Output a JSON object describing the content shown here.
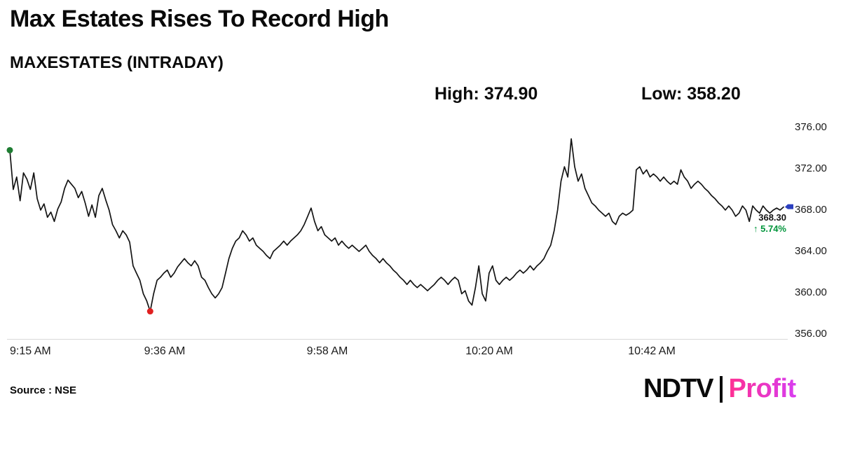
{
  "header": {
    "title": "Max Estates Rises To Record High",
    "subtitle": "MAXESTATES (INTRADAY)",
    "high_label": "High: 374.90",
    "low_label": "Low: 358.20"
  },
  "chart_data": {
    "type": "line",
    "symbol": "MAXESTATES",
    "session": "INTRADAY",
    "title": "Max Estates Rises To Record High",
    "high": 374.9,
    "low": 358.2,
    "last_price": 368.3,
    "change_percent": 5.74,
    "ylim": [
      356,
      376
    ],
    "grid": false,
    "line_color": "#141414",
    "start_marker_color": "#1e7d32",
    "low_marker_color": "#e02020",
    "last_marker_color": "#2b3fbf",
    "x_tick_labels": [
      "9:15 AM",
      "9:36 AM",
      "9:58 AM",
      "10:20 AM",
      "10:42 AM"
    ],
    "y_tick_labels": [
      "376.00",
      "372.00",
      "368.00",
      "364.00",
      "360.00",
      "356.00"
    ],
    "prices": [
      373.8,
      370.0,
      371.2,
      368.9,
      371.6,
      371.0,
      370.0,
      371.6,
      369.1,
      368.0,
      368.6,
      367.3,
      367.8,
      366.9,
      368.1,
      368.8,
      370.1,
      370.9,
      370.5,
      370.1,
      369.2,
      369.8,
      368.7,
      367.4,
      368.5,
      367.3,
      369.4,
      370.1,
      369.0,
      368.0,
      366.6,
      366.0,
      365.3,
      366.0,
      365.6,
      364.9,
      362.6,
      361.9,
      361.2,
      359.9,
      359.2,
      358.2,
      359.9,
      361.2,
      361.5,
      361.9,
      362.2,
      361.5,
      361.9,
      362.5,
      362.9,
      363.3,
      362.9,
      362.6,
      363.1,
      362.6,
      361.5,
      361.2,
      360.5,
      359.9,
      359.5,
      359.9,
      360.5,
      361.9,
      363.3,
      364.3,
      365.0,
      365.3,
      366.0,
      365.6,
      365.0,
      365.3,
      364.6,
      364.3,
      364.0,
      363.6,
      363.3,
      364.0,
      364.3,
      364.6,
      365.0,
      364.6,
      365.0,
      365.3,
      365.6,
      366.0,
      366.6,
      367.4,
      368.2,
      366.9,
      366.0,
      366.4,
      365.6,
      365.3,
      365.0,
      365.3,
      364.6,
      365.0,
      364.6,
      364.3,
      364.6,
      364.3,
      364.0,
      364.3,
      364.6,
      364.0,
      363.6,
      363.3,
      362.9,
      363.3,
      362.9,
      362.6,
      362.2,
      361.9,
      361.5,
      361.2,
      360.8,
      361.2,
      360.8,
      360.5,
      360.8,
      360.5,
      360.2,
      360.5,
      360.8,
      361.2,
      361.5,
      361.2,
      360.8,
      361.2,
      361.5,
      361.2,
      359.9,
      360.2,
      359.2,
      358.8,
      360.5,
      362.6,
      359.9,
      359.2,
      361.9,
      362.6,
      361.2,
      360.8,
      361.2,
      361.5,
      361.2,
      361.5,
      361.9,
      362.2,
      361.9,
      362.2,
      362.6,
      362.2,
      362.6,
      362.9,
      363.3,
      364.0,
      364.6,
      366.0,
      368.0,
      370.8,
      372.2,
      371.2,
      374.9,
      372.2,
      370.8,
      371.5,
      370.1,
      369.4,
      368.7,
      368.4,
      368.0,
      367.7,
      367.4,
      367.7,
      366.9,
      366.6,
      367.4,
      367.7,
      367.5,
      367.7,
      368.0,
      371.9,
      372.2,
      371.5,
      371.9,
      371.2,
      371.5,
      371.2,
      370.8,
      371.2,
      370.8,
      370.5,
      370.8,
      370.5,
      371.9,
      371.2,
      370.8,
      370.1,
      370.5,
      370.8,
      370.5,
      370.1,
      369.8,
      369.4,
      369.1,
      368.7,
      368.4,
      368.0,
      368.4,
      368.0,
      367.4,
      367.7,
      368.4,
      368.0,
      366.9,
      368.4,
      368.0,
      367.7,
      368.4,
      368.0,
      367.7,
      368.0,
      368.2,
      368.0,
      368.3
    ]
  },
  "last_quote": {
    "price_label": "368.30",
    "change_label": "↑ 5.74%"
  },
  "footer": {
    "source": "Source : NSE",
    "brand_ndtv": "NDTV",
    "brand_profit": "Profit"
  }
}
